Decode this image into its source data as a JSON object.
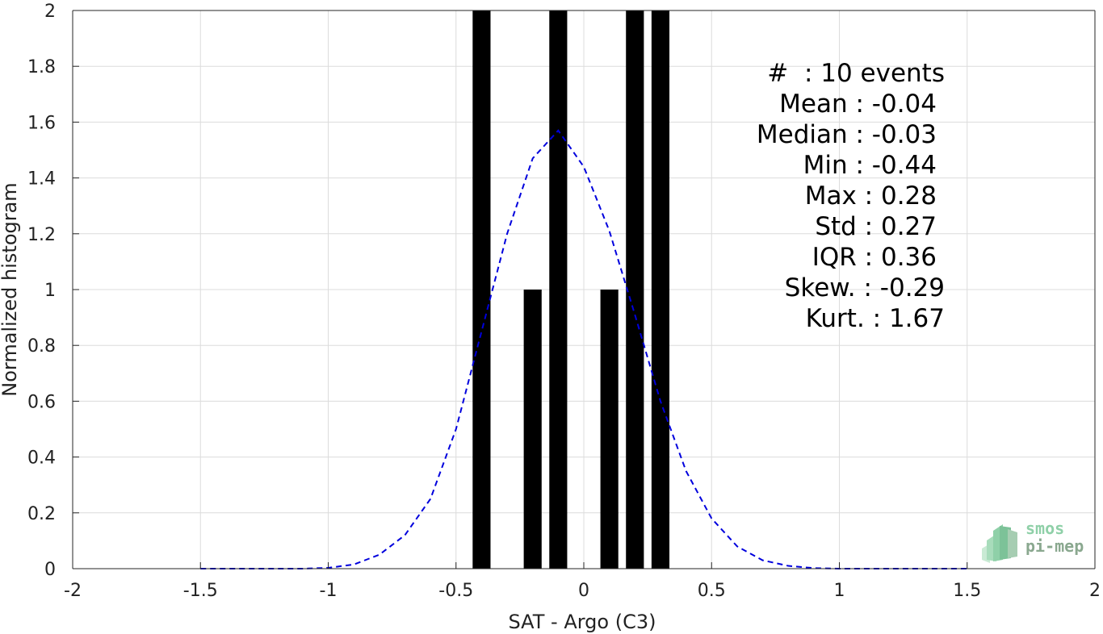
{
  "chart_data": {
    "type": "bar",
    "xlabel": "SAT - Argo (C3)",
    "ylabel": "Normalized histogram",
    "xlim": [
      -2,
      2
    ],
    "ylim": [
      0,
      2
    ],
    "xticks": [
      "-2",
      "-1.5",
      "-1",
      "-0.5",
      "0",
      "0.5",
      "1",
      "1.5",
      "2"
    ],
    "yticks": [
      "0",
      "0.2",
      "0.4",
      "0.6",
      "0.8",
      "1",
      "1.2",
      "1.4",
      "1.6",
      "1.8",
      "2"
    ],
    "grid": true,
    "bar_color": "#000000",
    "bar_width": 0.07,
    "bars": [
      {
        "x": -0.4,
        "value": 2
      },
      {
        "x": -0.2,
        "value": 1
      },
      {
        "x": -0.1,
        "value": 2
      },
      {
        "x": 0.1,
        "value": 1
      },
      {
        "x": 0.2,
        "value": 2
      },
      {
        "x": 0.3,
        "value": 2
      }
    ],
    "series": [
      {
        "type": "line",
        "style": "dashed",
        "color": "#0000dd",
        "x": [
          -1.5,
          -1.4,
          -1.3,
          -1.2,
          -1.1,
          -1.0,
          -0.9,
          -0.8,
          -0.7,
          -0.6,
          -0.5,
          -0.4,
          -0.3,
          -0.2,
          -0.1,
          0.0,
          0.1,
          0.2,
          0.3,
          0.4,
          0.5,
          0.6,
          0.7,
          0.8,
          0.9,
          1.0,
          1.1,
          1.2,
          1.3,
          1.4,
          1.5
        ],
        "y": [
          0,
          0,
          0,
          0,
          0,
          0.003,
          0.015,
          0.05,
          0.12,
          0.25,
          0.5,
          0.85,
          1.2,
          1.47,
          1.57,
          1.44,
          1.21,
          0.91,
          0.6,
          0.35,
          0.18,
          0.08,
          0.03,
          0.01,
          0.002,
          0,
          0,
          0,
          0,
          0,
          0
        ]
      }
    ],
    "annotations": [
      "#  : 10 events",
      "Mean : -0.04",
      "Median : -0.03",
      "Min : -0.44",
      "Max : 0.28",
      "Std : 0.27",
      "IQR : 0.36",
      "Skew. : -0.29",
      "Kurt. : 1.67"
    ]
  },
  "logo": {
    "line1": "smos",
    "line2": "pi-mep",
    "colors": [
      "#8fd0a8",
      "#8aa88f"
    ]
  }
}
